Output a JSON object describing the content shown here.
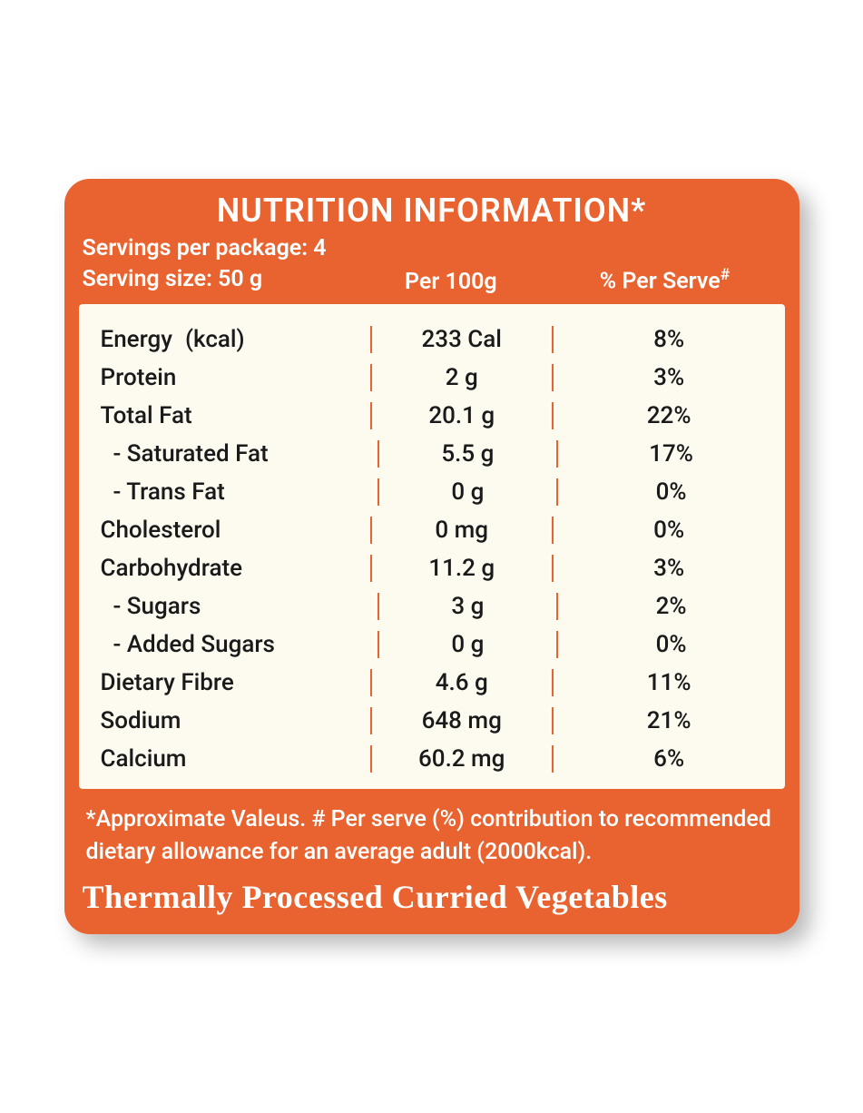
{
  "colors": {
    "panel_bg": "#e8632f",
    "table_bg": "#fdfaf0",
    "text_on_orange": "#ffffff",
    "text_on_cream": "#1a1a1a",
    "divider": "#e8632f",
    "shadow": "rgba(0,0,0,0.28)"
  },
  "header": {
    "title": "NUTRITION INFORMATION*",
    "servings_line": "Servings per package: 4",
    "size_line": "Serving size: 50 g",
    "col_per100": "Per 100g",
    "col_perserve": "% Per Serve",
    "col_perserve_sup": "#"
  },
  "rows": [
    {
      "name": "Energy",
      "unit_inline": "(kcal)",
      "value": "233 Cal",
      "pct": "8%",
      "indent": false
    },
    {
      "name": "Protein",
      "value": "2 g",
      "pct": "3%",
      "indent": false
    },
    {
      "name": "Total Fat",
      "value": "20.1 g",
      "pct": "22%",
      "indent": false
    },
    {
      "name": " - Saturated Fat",
      "value": "5.5 g",
      "pct": "17%",
      "indent": true
    },
    {
      "name": "- Trans Fat",
      "value": "0 g",
      "pct": "0%",
      "indent": true
    },
    {
      "name": "Cholesterol",
      "value": "0 mg",
      "pct": "0%",
      "indent": false
    },
    {
      "name": "Carbohydrate",
      "value": "11.2 g",
      "pct": "3%",
      "indent": false
    },
    {
      "name": " - Sugars",
      "value": "3 g",
      "pct": "2%",
      "indent": true
    },
    {
      "name": "- Added Sugars",
      "value": "0 g",
      "pct": "0%",
      "indent": true
    },
    {
      "name": "Dietary Fibre",
      "value": "4.6 g",
      "pct": "11%",
      "indent": false
    },
    {
      "name": "Sodium",
      "value": "648 mg",
      "pct": "21%",
      "indent": false
    },
    {
      "name": "Calcium",
      "value": "60.2 mg",
      "pct": "6%",
      "indent": false
    }
  ],
  "footnote": "*Approximate Valeus. # Per serve (%) contribution to recommended dietary allowance for an average adult (2000kcal).",
  "product": "Thermally Processed Curried Vegetables"
}
